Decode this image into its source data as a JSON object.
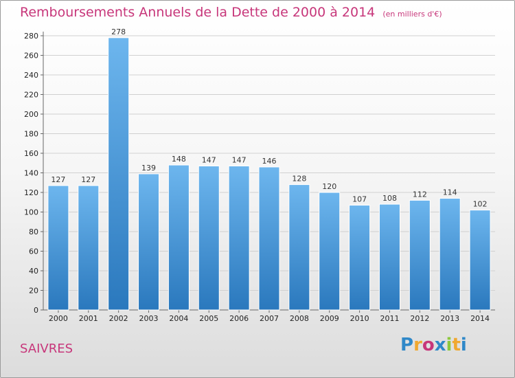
{
  "title": "Remboursements Annuels de la Dette de 2000 à 2014",
  "unit": "(en milliers d'€)",
  "commune": "SAIVRES",
  "logo": {
    "text": "Proxiti",
    "letters": [
      "P",
      "r",
      "o",
      "x",
      "i",
      "t",
      "i"
    ],
    "colors": [
      "#2f88c8",
      "#f0a830",
      "#c7367a",
      "#2f88c8",
      "#8cc83c",
      "#f0a830",
      "#2f88c8"
    ]
  },
  "colors": {
    "title": "#c7367a",
    "bar_top": "#6db6ee",
    "bar_bottom": "#2a78bd"
  },
  "chart_data": {
    "type": "bar",
    "categories": [
      "2000",
      "2001",
      "2002",
      "2003",
      "2004",
      "2005",
      "2006",
      "2007",
      "2008",
      "2009",
      "2010",
      "2011",
      "2012",
      "2013",
      "2014"
    ],
    "values": [
      127,
      127,
      278,
      139,
      148,
      147,
      147,
      146,
      128,
      120,
      107,
      108,
      112,
      114,
      102
    ],
    "title": "Remboursements Annuels de la Dette de 2000 à 2014",
    "xlabel": "",
    "ylabel": "",
    "ylim": [
      0,
      280
    ],
    "yticks": [
      0,
      20,
      40,
      60,
      80,
      100,
      120,
      140,
      160,
      180,
      200,
      220,
      240,
      260,
      280
    ],
    "grid": true,
    "legend": "none"
  }
}
